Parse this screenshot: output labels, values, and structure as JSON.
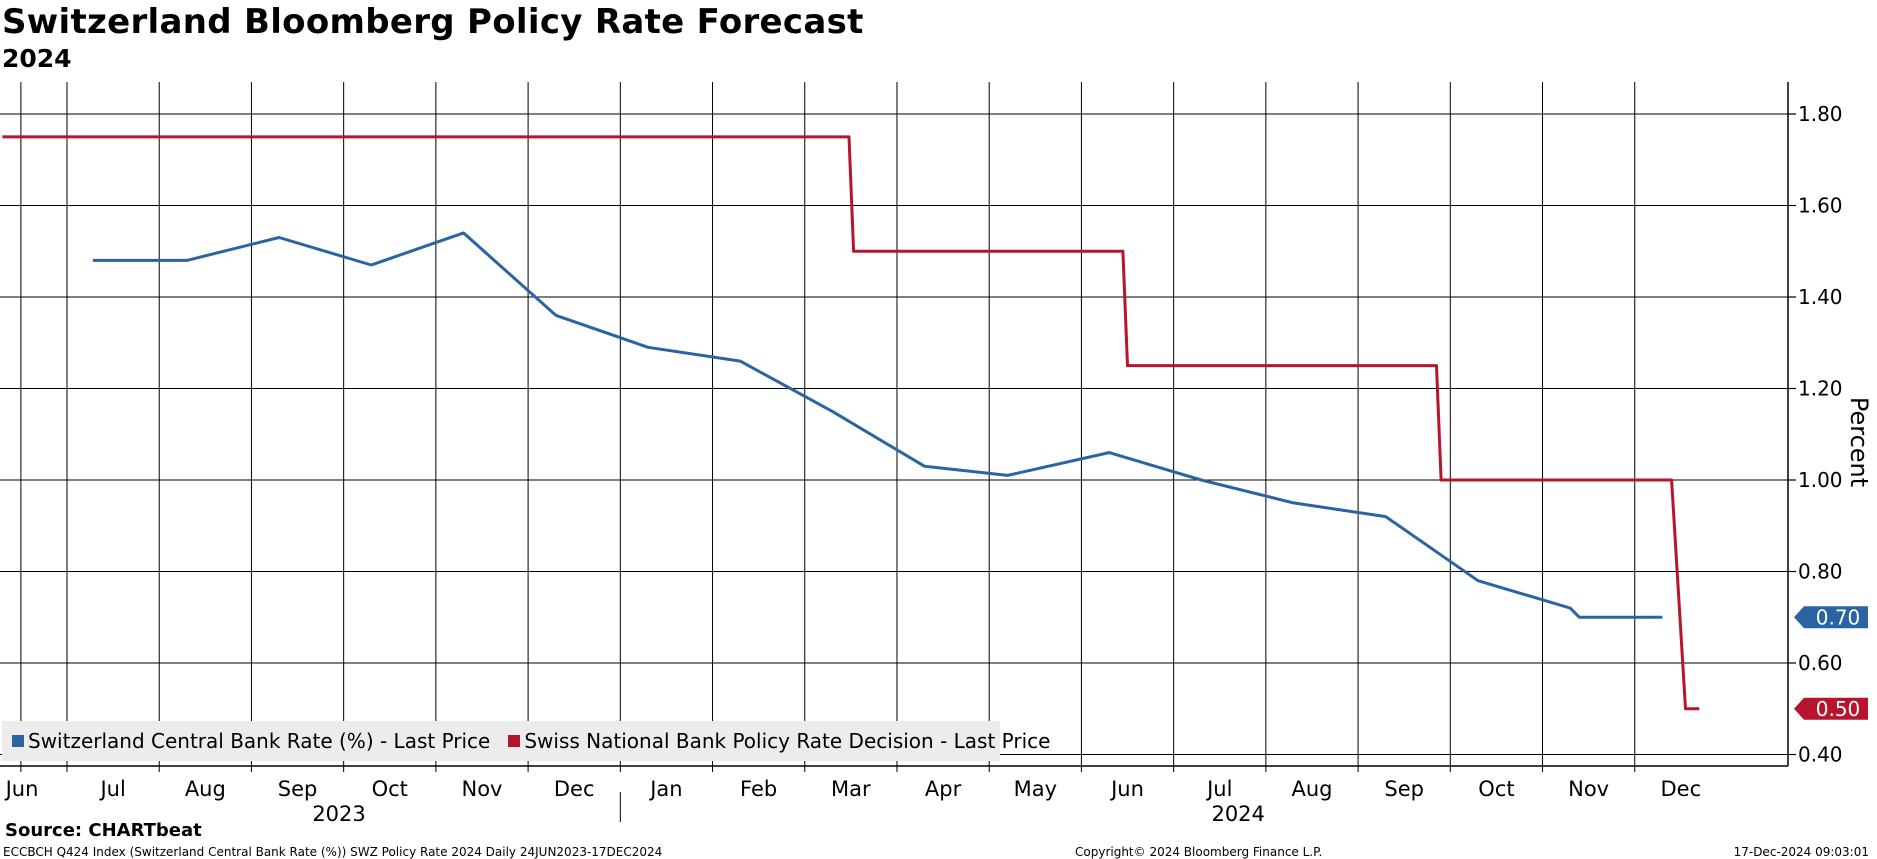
{
  "header": {
    "title": "Switzerland Bloomberg Policy Rate Forecast",
    "subtitle": "2024"
  },
  "colors": {
    "series_blue": "#2a64a3",
    "series_red": "#b7142d",
    "grid": "#000000",
    "legend_bg": "#ececec"
  },
  "chart_data": {
    "type": "line",
    "title": "Switzerland Bloomberg Policy Rate Forecast",
    "subtitle": "2024",
    "ylabel": "Percent",
    "xlabel": "",
    "ylim": [
      0.38,
      1.88
    ],
    "xlim_months": [
      5.8,
      23.3
    ],
    "y_ticks": [
      "1.80",
      "1.60",
      "1.40",
      "1.20",
      "1.00",
      "0.80",
      "0.60",
      "0.40"
    ],
    "y_tick_values": [
      1.8,
      1.6,
      1.4,
      1.2,
      1.0,
      0.8,
      0.6,
      0.4
    ],
    "x_ticks": [
      {
        "label": "Jun",
        "m": 5.9
      },
      {
        "label": "Jul",
        "m": 7.0
      },
      {
        "label": "Aug",
        "m": 8.0
      },
      {
        "label": "Sep",
        "m": 9.0
      },
      {
        "label": "Oct",
        "m": 10.0
      },
      {
        "label": "Nov",
        "m": 11.0
      },
      {
        "label": "Dec",
        "m": 12.0
      },
      {
        "label": "Jan",
        "m": 13.0
      },
      {
        "label": "Feb",
        "m": 14.0
      },
      {
        "label": "Mar",
        "m": 15.0
      },
      {
        "label": "Apr",
        "m": 16.0
      },
      {
        "label": "May",
        "m": 17.0
      },
      {
        "label": "Jun",
        "m": 18.0
      },
      {
        "label": "Jul",
        "m": 19.0
      },
      {
        "label": "Aug",
        "m": 20.0
      },
      {
        "label": "Sep",
        "m": 21.0
      },
      {
        "label": "Oct",
        "m": 22.0
      },
      {
        "label": "Nov",
        "m": 23.0
      },
      {
        "label": "Dec",
        "m": 24.0
      }
    ],
    "gridlines_m": [
      6.0,
      6.5,
      7.5,
      8.5,
      9.5,
      10.5,
      11.5,
      12.5,
      13.5,
      14.5,
      15.5,
      16.5,
      17.5,
      18.5,
      19.5,
      20.5,
      21.5,
      22.5,
      23.5
    ],
    "year_labels": [
      {
        "label": "2023",
        "m": 9.45
      },
      {
        "label": "2024",
        "m": 19.2
      }
    ],
    "year_divider_m": 12.5,
    "series": [
      {
        "name": "Switzerland Central Bank Rate (%) - Last Price",
        "color": "#2a64a3",
        "last_value": "0.70",
        "points": [
          [
            6.78,
            1.48
          ],
          [
            7.8,
            1.48
          ],
          [
            8.8,
            1.53
          ],
          [
            9.8,
            1.47
          ],
          [
            10.8,
            1.54
          ],
          [
            11.8,
            1.36
          ],
          [
            12.8,
            1.29
          ],
          [
            13.8,
            1.26
          ],
          [
            14.8,
            1.15
          ],
          [
            15.8,
            1.03
          ],
          [
            16.7,
            1.01
          ],
          [
            17.8,
            1.06
          ],
          [
            18.8,
            1.0
          ],
          [
            19.8,
            0.95
          ],
          [
            20.8,
            0.92
          ],
          [
            21.8,
            0.78
          ],
          [
            22.8,
            0.72
          ],
          [
            22.9,
            0.7
          ],
          [
            23.8,
            0.7
          ]
        ]
      },
      {
        "name": "Swiss National Bank Policy Rate Decision - Last Price",
        "color": "#b7142d",
        "last_value": "0.50",
        "points": [
          [
            5.8,
            1.75
          ],
          [
            14.98,
            1.75
          ],
          [
            15.03,
            1.5
          ],
          [
            17.95,
            1.5
          ],
          [
            18.0,
            1.25
          ],
          [
            21.35,
            1.25
          ],
          [
            21.4,
            1.0
          ],
          [
            23.9,
            1.0
          ],
          [
            24.05,
            0.5
          ],
          [
            24.2,
            0.5
          ]
        ]
      }
    ]
  },
  "legend": {
    "item_blue": "Switzerland Central Bank Rate (%) - Last Price",
    "item_red": "Swiss National Bank Policy Rate Decision - Last Price"
  },
  "footer": {
    "source": "Source: CHARTbeat",
    "left": "ECCBCH Q424 Index (Switzerland Central Bank Rate (%)) SWZ Policy Rate 2024  Daily 24JUN2023-17DEC2024",
    "center": "Copyright© 2024 Bloomberg Finance L.P.",
    "right": "17-Dec-2024 09:03:01"
  }
}
